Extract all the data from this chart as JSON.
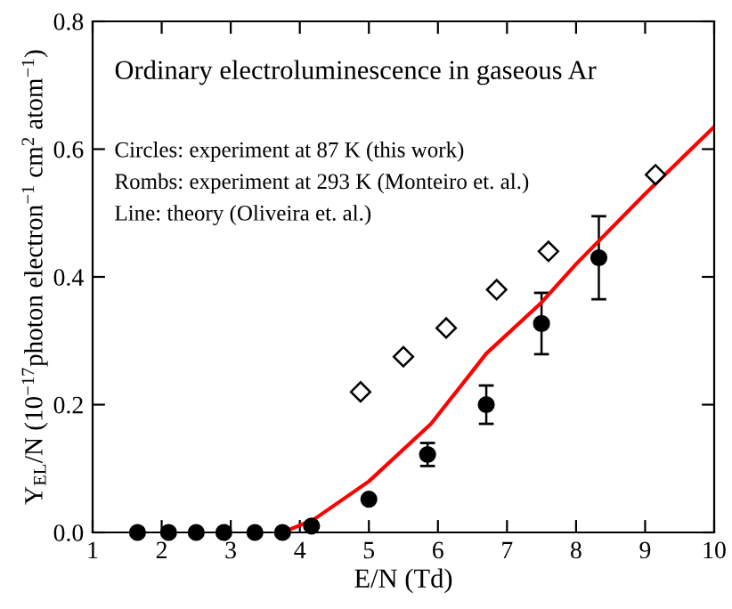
{
  "chart_data": {
    "type": "scatter",
    "title": "Ordinary electroluminescence in gaseous Ar",
    "xlabel": "E/N (Td)",
    "ylabel": "Y$_{EL}$/N (10$^{−17}$photon electron$^{−1}$ cm$^{2}$ atom$^{−1}$)",
    "annotations": [
      "Circles: experiment at 87 K (this work)",
      "Rombs: experiment at 293 K (Monteiro et. al.)",
      "Line: theory (Oliveira et. al.)"
    ],
    "xlim": [
      1,
      10
    ],
    "ylim": [
      0,
      0.8
    ],
    "xticks": [
      1,
      2,
      3,
      4,
      5,
      6,
      7,
      8,
      9,
      10
    ],
    "yticks": [
      {
        "value": 0,
        "label": "0.0"
      },
      0.2,
      0.4,
      0.6,
      0.8
    ],
    "grid": false,
    "legend": false,
    "series": [
      {
        "marker": "circle",
        "color": "#000000",
        "x": [
          1.65,
          2.1,
          2.5,
          2.9,
          3.35,
          3.75,
          4.17,
          5.0,
          5.85,
          6.7,
          7.5,
          8.33
        ],
        "values": [
          0,
          0,
          0,
          0,
          0,
          0,
          0.01,
          0.052,
          0.122,
          0.2,
          0.327,
          0.43
        ],
        "errors": [
          null,
          null,
          null,
          null,
          null,
          null,
          null,
          null,
          0.018,
          0.03,
          0.048,
          0.065
        ]
      },
      {
        "marker": "diamond",
        "color": "#000000",
        "x": [
          4.88,
          5.5,
          6.12,
          6.85,
          7.6,
          9.15
        ],
        "values": [
          0.22,
          0.275,
          0.32,
          0.38,
          0.44,
          0.56
        ]
      },
      {
        "type": "line",
        "marker": "none",
        "line_style": "solid",
        "color": "#ff0000",
        "x": [
          3.75,
          4.2,
          5.0,
          5.9,
          6.7,
          7.5,
          8.0,
          9.0,
          10.0
        ],
        "values": [
          0,
          0.02,
          0.08,
          0.17,
          0.28,
          0.36,
          0.42,
          0.53,
          0.635
        ]
      }
    ]
  }
}
